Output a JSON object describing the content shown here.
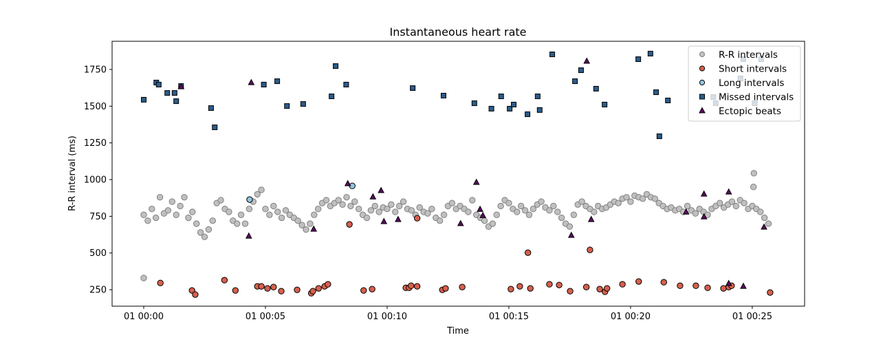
{
  "chart_data": {
    "type": "scatter",
    "title": "Instantaneous heart rate",
    "xlabel": "Time",
    "ylabel": "R-R interval (ms)",
    "xlim": [
      "00:-01:18",
      "00:27:09"
    ],
    "ylim": [
      138,
      1942
    ],
    "x_ticks": [
      {
        "t": "00:00:00",
        "label": "01 00:00"
      },
      {
        "t": "00:05:00",
        "label": "01 00:05"
      },
      {
        "t": "00:10:00",
        "label": "01 00:10"
      },
      {
        "t": "00:15:00",
        "label": "01 00:15"
      },
      {
        "t": "00:20:00",
        "label": "01 00:20"
      },
      {
        "t": "00:25:00",
        "label": "01 00:25"
      }
    ],
    "y_ticks": [
      250,
      500,
      750,
      1000,
      1250,
      1500,
      1750
    ],
    "grid": false,
    "legend_position": "top-right",
    "series": [
      {
        "name": "R-R intervals",
        "marker": "circle",
        "color": "#c0c0c0",
        "edge": "#808080",
        "points": [
          [
            "00:00:00",
            330
          ],
          [
            "00:00:00",
            760
          ],
          [
            "00:00:10",
            720
          ],
          [
            "00:00:20",
            800
          ],
          [
            "00:00:30",
            740
          ],
          [
            "00:00:40",
            880
          ],
          [
            "00:00:50",
            770
          ],
          [
            "00:01:00",
            790
          ],
          [
            "00:01:10",
            850
          ],
          [
            "00:01:20",
            760
          ],
          [
            "00:01:30",
            820
          ],
          [
            "00:01:40",
            880
          ],
          [
            "00:01:50",
            740
          ],
          [
            "00:02:00",
            780
          ],
          [
            "00:02:10",
            700
          ],
          [
            "00:02:20",
            640
          ],
          [
            "00:02:30",
            610
          ],
          [
            "00:02:40",
            660
          ],
          [
            "00:02:50",
            720
          ],
          [
            "00:03:00",
            840
          ],
          [
            "00:03:10",
            860
          ],
          [
            "00:03:20",
            800
          ],
          [
            "00:03:30",
            780
          ],
          [
            "00:03:40",
            720
          ],
          [
            "00:03:50",
            700
          ],
          [
            "00:04:00",
            760
          ],
          [
            "00:04:10",
            700
          ],
          [
            "00:04:20",
            800
          ],
          [
            "00:04:30",
            850
          ],
          [
            "00:04:40",
            900
          ],
          [
            "00:04:50",
            930
          ],
          [
            "00:05:00",
            800
          ],
          [
            "00:05:10",
            760
          ],
          [
            "00:05:20",
            820
          ],
          [
            "00:05:30",
            780
          ],
          [
            "00:05:40",
            740
          ],
          [
            "00:05:50",
            790
          ],
          [
            "00:06:00",
            760
          ],
          [
            "00:06:10",
            740
          ],
          [
            "00:06:20",
            720
          ],
          [
            "00:06:30",
            690
          ],
          [
            "00:06:40",
            660
          ],
          [
            "00:06:50",
            700
          ],
          [
            "00:07:00",
            760
          ],
          [
            "00:07:10",
            800
          ],
          [
            "00:07:20",
            840
          ],
          [
            "00:07:30",
            860
          ],
          [
            "00:07:40",
            820
          ],
          [
            "00:07:50",
            840
          ],
          [
            "00:08:00",
            860
          ],
          [
            "00:08:10",
            830
          ],
          [
            "00:08:20",
            880
          ],
          [
            "00:08:30",
            820
          ],
          [
            "00:08:40",
            850
          ],
          [
            "00:08:50",
            800
          ],
          [
            "00:09:00",
            760
          ],
          [
            "00:09:10",
            740
          ],
          [
            "00:09:20",
            790
          ],
          [
            "00:09:30",
            820
          ],
          [
            "00:09:40",
            780
          ],
          [
            "00:09:50",
            810
          ],
          [
            "00:10:00",
            800
          ],
          [
            "00:10:10",
            830
          ],
          [
            "00:10:20",
            780
          ],
          [
            "00:10:30",
            820
          ],
          [
            "00:10:40",
            850
          ],
          [
            "00:10:50",
            800
          ],
          [
            "00:11:00",
            790
          ],
          [
            "00:11:10",
            760
          ],
          [
            "00:11:20",
            810
          ],
          [
            "00:11:30",
            780
          ],
          [
            "00:11:40",
            770
          ],
          [
            "00:11:50",
            800
          ],
          [
            "00:12:00",
            740
          ],
          [
            "00:12:10",
            720
          ],
          [
            "00:12:20",
            760
          ],
          [
            "00:12:30",
            820
          ],
          [
            "00:12:40",
            840
          ],
          [
            "00:12:50",
            800
          ],
          [
            "00:13:00",
            820
          ],
          [
            "00:13:10",
            800
          ],
          [
            "00:13:20",
            780
          ],
          [
            "00:13:30",
            860
          ],
          [
            "00:13:40",
            760
          ],
          [
            "00:13:50",
            740
          ],
          [
            "00:14:00",
            720
          ],
          [
            "00:14:10",
            680
          ],
          [
            "00:14:20",
            700
          ],
          [
            "00:14:30",
            760
          ],
          [
            "00:14:40",
            820
          ],
          [
            "00:14:50",
            860
          ],
          [
            "00:15:00",
            840
          ],
          [
            "00:15:10",
            800
          ],
          [
            "00:15:20",
            780
          ],
          [
            "00:15:30",
            820
          ],
          [
            "00:15:40",
            790
          ],
          [
            "00:15:50",
            760
          ],
          [
            "00:16:00",
            800
          ],
          [
            "00:16:10",
            830
          ],
          [
            "00:16:20",
            850
          ],
          [
            "00:16:30",
            810
          ],
          [
            "00:16:40",
            790
          ],
          [
            "00:16:50",
            820
          ],
          [
            "00:17:00",
            780
          ],
          [
            "00:17:10",
            740
          ],
          [
            "00:17:20",
            700
          ],
          [
            "00:17:30",
            680
          ],
          [
            "00:17:40",
            760
          ],
          [
            "00:17:50",
            830
          ],
          [
            "00:18:00",
            850
          ],
          [
            "00:18:10",
            820
          ],
          [
            "00:18:20",
            800
          ],
          [
            "00:18:30",
            780
          ],
          [
            "00:18:40",
            820
          ],
          [
            "00:18:50",
            800
          ],
          [
            "00:19:00",
            810
          ],
          [
            "00:19:10",
            830
          ],
          [
            "00:19:20",
            850
          ],
          [
            "00:19:30",
            840
          ],
          [
            "00:19:40",
            870
          ],
          [
            "00:19:50",
            880
          ],
          [
            "00:20:00",
            850
          ],
          [
            "00:20:10",
            890
          ],
          [
            "00:20:20",
            880
          ],
          [
            "00:20:30",
            870
          ],
          [
            "00:20:40",
            900
          ],
          [
            "00:20:50",
            880
          ],
          [
            "00:21:00",
            870
          ],
          [
            "00:21:10",
            840
          ],
          [
            "00:21:20",
            820
          ],
          [
            "00:21:30",
            800
          ],
          [
            "00:21:40",
            810
          ],
          [
            "00:21:50",
            790
          ],
          [
            "00:22:00",
            800
          ],
          [
            "00:22:10",
            780
          ],
          [
            "00:22:20",
            820
          ],
          [
            "00:22:30",
            790
          ],
          [
            "00:22:40",
            770
          ],
          [
            "00:22:50",
            800
          ],
          [
            "00:23:00",
            780
          ],
          [
            "00:23:10",
            760
          ],
          [
            "00:23:20",
            800
          ],
          [
            "00:23:30",
            820
          ],
          [
            "00:23:40",
            840
          ],
          [
            "00:23:50",
            810
          ],
          [
            "00:24:00",
            830
          ],
          [
            "00:24:10",
            850
          ],
          [
            "00:24:20",
            820
          ],
          [
            "00:24:30",
            860
          ],
          [
            "00:24:40",
            840
          ],
          [
            "00:24:50",
            800
          ],
          [
            "00:25:00",
            820
          ],
          [
            "00:25:03",
            950
          ],
          [
            "00:25:04",
            1043
          ],
          [
            "00:25:10",
            800
          ],
          [
            "00:25:20",
            780
          ],
          [
            "00:25:30",
            740
          ],
          [
            "00:25:40",
            700
          ]
        ]
      },
      {
        "name": "Short intervals",
        "marker": "circle",
        "color": "#d6604d",
        "edge": "#000000",
        "points": [
          [
            "00:00:41",
            296
          ],
          [
            "00:01:59",
            245
          ],
          [
            "00:02:07",
            217
          ],
          [
            "00:03:19",
            315
          ],
          [
            "00:03:46",
            245
          ],
          [
            "00:04:40",
            273
          ],
          [
            "00:04:50",
            273
          ],
          [
            "00:05:05",
            259
          ],
          [
            "00:05:20",
            268
          ],
          [
            "00:05:39",
            240
          ],
          [
            "00:06:18",
            249
          ],
          [
            "00:06:53",
            226
          ],
          [
            "00:06:57",
            240
          ],
          [
            "00:07:11",
            259
          ],
          [
            "00:07:26",
            273
          ],
          [
            "00:07:34",
            287
          ],
          [
            "00:08:27",
            695
          ],
          [
            "00:09:02",
            245
          ],
          [
            "00:09:23",
            254
          ],
          [
            "00:10:46",
            263
          ],
          [
            "00:10:54",
            263
          ],
          [
            "00:10:59",
            277
          ],
          [
            "00:11:14",
            737
          ],
          [
            "00:11:14",
            273
          ],
          [
            "00:12:16",
            249
          ],
          [
            "00:12:24",
            259
          ],
          [
            "00:13:05",
            268
          ],
          [
            "00:15:05",
            254
          ],
          [
            "00:15:27",
            273
          ],
          [
            "00:15:47",
            502
          ],
          [
            "00:15:53",
            259
          ],
          [
            "00:16:40",
            287
          ],
          [
            "00:17:04",
            282
          ],
          [
            "00:17:31",
            240
          ],
          [
            "00:18:11",
            268
          ],
          [
            "00:18:20",
            521
          ],
          [
            "00:18:44",
            254
          ],
          [
            "00:18:57",
            236
          ],
          [
            "00:19:02",
            259
          ],
          [
            "00:19:40",
            287
          ],
          [
            "00:20:20",
            306
          ],
          [
            "00:21:22",
            301
          ],
          [
            "00:22:02",
            277
          ],
          [
            "00:22:41",
            277
          ],
          [
            "00:23:10",
            263
          ],
          [
            "00:23:49",
            259
          ],
          [
            "00:24:02",
            268
          ],
          [
            "00:24:09",
            277
          ],
          [
            "00:25:44",
            231
          ]
        ]
      },
      {
        "name": "Long intervals",
        "marker": "circle",
        "color": "#92c5de",
        "edge": "#000000",
        "points": [
          [
            "00:04:21",
            864
          ],
          [
            "00:08:34",
            957
          ]
        ]
      },
      {
        "name": "Missed intervals",
        "marker": "square",
        "color": "#2b5c8a",
        "edge": "#000000",
        "points": [
          [
            "00:00:00",
            1544
          ],
          [
            "00:00:31",
            1661
          ],
          [
            "00:00:37",
            1647
          ],
          [
            "00:00:58",
            1590
          ],
          [
            "00:01:16",
            1590
          ],
          [
            "00:01:20",
            1534
          ],
          [
            "00:01:32",
            1637
          ],
          [
            "00:02:46",
            1487
          ],
          [
            "00:02:55",
            1356
          ],
          [
            "00:04:56",
            1647
          ],
          [
            "00:05:29",
            1670
          ],
          [
            "00:05:53",
            1501
          ],
          [
            "00:06:33",
            1515
          ],
          [
            "00:07:43",
            1567
          ],
          [
            "00:07:53",
            1773
          ],
          [
            "00:08:19",
            1647
          ],
          [
            "00:11:03",
            1623
          ],
          [
            "00:12:19",
            1572
          ],
          [
            "00:13:35",
            1520
          ],
          [
            "00:14:17",
            1483
          ],
          [
            "00:14:41",
            1567
          ],
          [
            "00:15:02",
            1483
          ],
          [
            "00:15:12",
            1511
          ],
          [
            "00:15:46",
            1445
          ],
          [
            "00:16:11",
            1567
          ],
          [
            "00:16:16",
            1474
          ],
          [
            "00:16:47",
            1853
          ],
          [
            "00:17:43",
            1670
          ],
          [
            "00:17:58",
            1745
          ],
          [
            "00:18:35",
            1619
          ],
          [
            "00:18:56",
            1511
          ],
          [
            "00:20:19",
            1820
          ],
          [
            "00:20:49",
            1858
          ],
          [
            "00:21:03",
            1595
          ],
          [
            "00:21:11",
            1295
          ],
          [
            "00:21:32",
            1539
          ],
          [
            "00:23:24",
            1562
          ],
          [
            "00:23:30",
            1520
          ],
          [
            "00:24:31",
            1689
          ],
          [
            "00:24:38",
            1820
          ],
          [
            "00:25:06",
            1520
          ],
          [
            "00:25:22",
            1820
          ]
        ]
      },
      {
        "name": "Ectopic beats",
        "marker": "triangle",
        "color": "#5c0a63",
        "edge": "#000000",
        "points": [
          [
            "00:01:32",
            1632
          ],
          [
            "00:04:25",
            1660
          ],
          [
            "00:18:12",
            1806
          ],
          [
            "00:04:19",
            615
          ],
          [
            "00:06:59",
            662
          ],
          [
            "00:08:23",
            972
          ],
          [
            "00:09:25",
            882
          ],
          [
            "00:09:45",
            925
          ],
          [
            "00:09:52",
            714
          ],
          [
            "00:10:27",
            728
          ],
          [
            "00:13:01",
            700
          ],
          [
            "00:13:40",
            981
          ],
          [
            "00:13:49",
            797
          ],
          [
            "00:13:56",
            755
          ],
          [
            "00:17:34",
            620
          ],
          [
            "00:18:23",
            728
          ],
          [
            "00:22:17",
            779
          ],
          [
            "00:23:01",
            746
          ],
          [
            "00:23:01",
            901
          ],
          [
            "00:24:02",
            915
          ],
          [
            "00:24:02",
            292
          ],
          [
            "00:24:38",
            273
          ],
          [
            "00:25:29",
            676
          ]
        ]
      }
    ]
  }
}
